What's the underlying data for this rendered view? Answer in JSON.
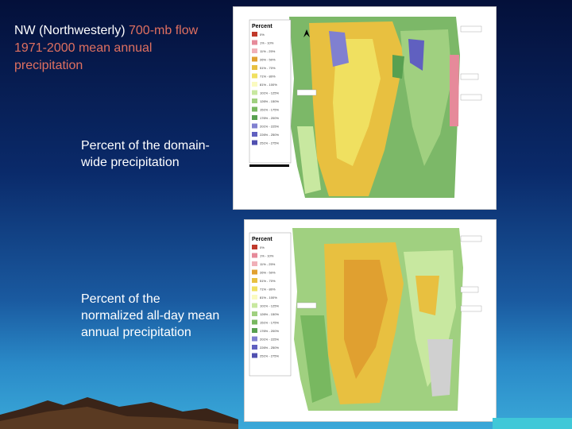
{
  "slide": {
    "title_bold": "NW (Northwesterly)",
    "title_rest": " 700-mb flow 1971-2000 mean annual precipitation",
    "label_top": "Percent of the domain-wide precipitation",
    "label_bottom": "Percent of the normalized all-day mean annual precipitation"
  },
  "map_top": {
    "legend_title": "Percent",
    "legend_items": [
      "0%",
      "1% - 10%",
      "11% - 25%",
      "26% - 50%",
      "51% - 70%",
      "71% - 80%",
      "81% - 100%",
      "101% - 125%",
      "126% - 150%",
      "151% - 175%",
      "176% - 200%",
      "201% - 225%",
      "226% - 250%",
      "251% - 275%"
    ],
    "legend_colors": [
      "#c0392b",
      "#e68a9a",
      "#f0b0b8",
      "#e0a030",
      "#e8c040",
      "#f0e060",
      "#fafac0",
      "#c8e8a0",
      "#a0d080",
      "#78b860",
      "#58a050",
      "#8080d0",
      "#6060c0",
      "#5050b0"
    ]
  },
  "map_bottom": {
    "legend_title": "Percent",
    "legend_items": [
      "0%",
      "1% - 10%",
      "11% - 25%",
      "26% - 50%",
      "51% - 70%",
      "71% - 80%",
      "81% - 100%",
      "101% - 125%",
      "126% - 150%",
      "151% - 175%",
      "176% - 200%",
      "201% - 225%",
      "226% - 250%",
      "251% - 275%"
    ],
    "legend_colors": [
      "#c0392b",
      "#e68a9a",
      "#f0b0b8",
      "#e0a030",
      "#e8c040",
      "#f0e060",
      "#fafac0",
      "#c8e8a0",
      "#a0d080",
      "#78b860",
      "#58a050",
      "#8080d0",
      "#6060c0",
      "#5050b0"
    ]
  }
}
